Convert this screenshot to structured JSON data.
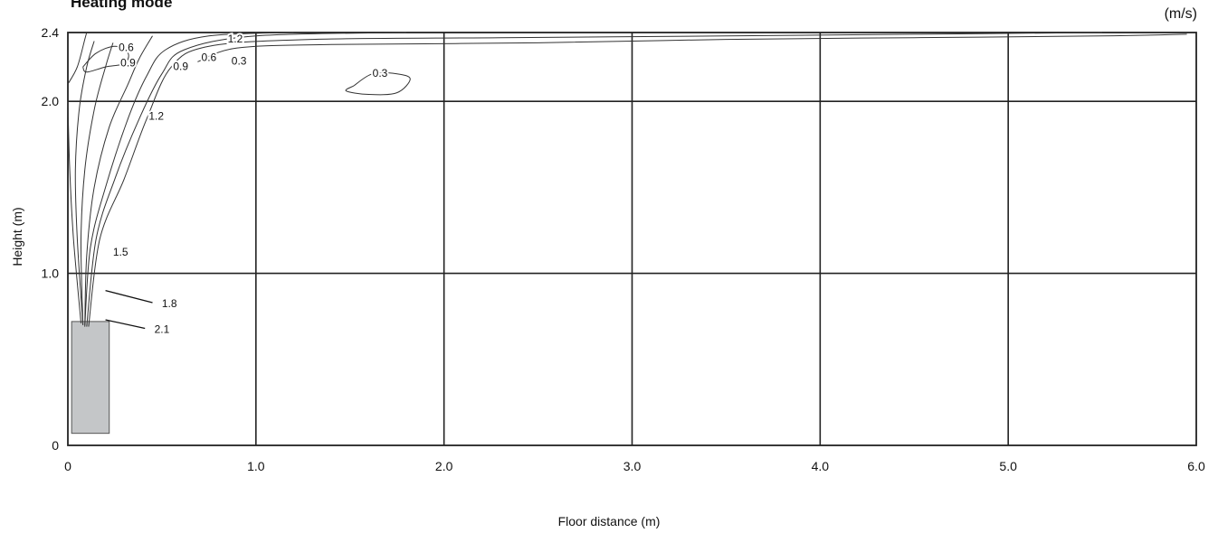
{
  "chart_data": {
    "type": "contour",
    "title": "Heating mode",
    "unit_label": "(m/s)",
    "xlabel": "Floor distance (m)",
    "ylabel": "Height (m)",
    "xlim": [
      0,
      6.0
    ],
    "ylim": [
      0,
      2.4
    ],
    "x_ticks": [
      {
        "value": 0,
        "label": "0"
      },
      {
        "value": 1.0,
        "label": "1.0"
      },
      {
        "value": 2.0,
        "label": "2.0"
      },
      {
        "value": 3.0,
        "label": "3.0"
      },
      {
        "value": 4.0,
        "label": "4.0"
      },
      {
        "value": 5.0,
        "label": "5.0"
      },
      {
        "value": 6.0,
        "label": "6.0"
      }
    ],
    "y_ticks": [
      {
        "value": 0,
        "label": "0"
      },
      {
        "value": 1.0,
        "label": "1.0"
      },
      {
        "value": 2.0,
        "label": "2.0"
      },
      {
        "value": 2.4,
        "label": "2.4"
      }
    ],
    "grid": true,
    "unit_block": {
      "x0": 0.02,
      "x1": 0.22,
      "y0": 0.07,
      "y1": 0.72
    },
    "contours": [
      {
        "level": "0.3",
        "points": [
          [
            0.69,
            2.23
          ],
          [
            0.9,
            2.31
          ],
          [
            1.4,
            2.33
          ],
          [
            2.5,
            2.34
          ],
          [
            3.5,
            2.36
          ],
          [
            4.5,
            2.37
          ],
          [
            5.5,
            2.38
          ],
          [
            5.95,
            2.39
          ]
        ]
      },
      {
        "level": "0.3",
        "closed": true,
        "points": [
          [
            1.52,
            2.09
          ],
          [
            1.62,
            2.16
          ],
          [
            1.75,
            2.16
          ],
          [
            1.82,
            2.13
          ],
          [
            1.75,
            2.05
          ],
          [
            1.6,
            2.04
          ],
          [
            1.48,
            2.06
          ]
        ]
      },
      {
        "level": "0.6",
        "points": [
          [
            0.11,
            0.69
          ],
          [
            0.17,
            1.2
          ],
          [
            0.3,
            1.55
          ],
          [
            0.42,
            1.9
          ],
          [
            0.55,
            2.2
          ],
          [
            0.75,
            2.32
          ],
          [
            1.3,
            2.36
          ],
          [
            2.3,
            2.37
          ],
          [
            3.5,
            2.38
          ],
          [
            4.5,
            2.39
          ],
          [
            5.5,
            2.4
          ]
        ]
      },
      {
        "level": "0.9",
        "points": [
          [
            0.1,
            0.69
          ],
          [
            0.15,
            1.2
          ],
          [
            0.25,
            1.55
          ],
          [
            0.38,
            1.9
          ],
          [
            0.5,
            2.16
          ],
          [
            0.62,
            2.3
          ],
          [
            1.0,
            2.38
          ],
          [
            1.8,
            2.4
          ]
        ]
      },
      {
        "level": "1.2",
        "points": [
          [
            0.09,
            0.69
          ],
          [
            0.12,
            1.15
          ],
          [
            0.2,
            1.5
          ],
          [
            0.32,
            1.9
          ],
          [
            0.42,
            2.15
          ],
          [
            0.52,
            2.3
          ],
          [
            0.75,
            2.38
          ],
          [
            1.2,
            2.4
          ]
        ]
      },
      {
        "level": "1.5",
        "points": [
          [
            0.09,
            0.7
          ],
          [
            0.1,
            1.1
          ],
          [
            0.14,
            1.5
          ],
          [
            0.22,
            1.85
          ],
          [
            0.32,
            2.1
          ],
          [
            0.38,
            2.25
          ],
          [
            0.45,
            2.38
          ]
        ]
      },
      {
        "level": "1.8",
        "points": [
          [
            0.08,
            0.7
          ],
          [
            0.07,
            1.2
          ],
          [
            0.09,
            1.6
          ],
          [
            0.14,
            1.95
          ],
          [
            0.2,
            2.2
          ],
          [
            0.24,
            2.34
          ]
        ]
      },
      {
        "level": "2.1",
        "points": [
          [
            0.08,
            0.7
          ],
          [
            0.05,
            1.2
          ],
          [
            0.04,
            1.6
          ],
          [
            0.06,
            1.95
          ],
          [
            0.1,
            2.2
          ],
          [
            0.14,
            2.35
          ]
        ]
      },
      {
        "level": "",
        "points": [
          [
            0.07,
            0.71
          ],
          [
            0.03,
            1.2
          ],
          [
            0.01,
            1.6
          ],
          [
            0.0,
            2.0
          ]
        ]
      },
      {
        "level": "0.6",
        "closed": true,
        "points": [
          [
            0.08,
            2.2
          ],
          [
            0.15,
            2.28
          ],
          [
            0.25,
            2.32
          ],
          [
            0.32,
            2.28
          ],
          [
            0.3,
            2.22
          ],
          [
            0.2,
            2.2
          ],
          [
            0.1,
            2.17
          ]
        ]
      },
      {
        "level": "1.2",
        "points": [
          [
            0.0,
            2.1
          ],
          [
            0.05,
            2.2
          ],
          [
            0.09,
            2.36
          ],
          [
            0.1,
            2.4
          ]
        ]
      }
    ],
    "contour_labels": [
      {
        "text": "0.6",
        "x": 0.31,
        "y": 2.31
      },
      {
        "text": "0.9",
        "x": 0.32,
        "y": 2.22
      },
      {
        "text": "1.2",
        "x": 0.89,
        "y": 2.36
      },
      {
        "text": "0.9",
        "x": 0.6,
        "y": 2.2
      },
      {
        "text": "0.6",
        "x": 0.75,
        "y": 2.25
      },
      {
        "text": "0.3",
        "x": 0.91,
        "y": 2.23
      },
      {
        "text": "0.3",
        "x": 1.66,
        "y": 2.16
      },
      {
        "text": "1.2",
        "x": 0.47,
        "y": 1.91
      },
      {
        "text": "1.5",
        "x": 0.28,
        "y": 1.12
      },
      {
        "text": "1.8",
        "x": 0.54,
        "y": 0.82
      },
      {
        "text": "2.1",
        "x": 0.5,
        "y": 0.67
      }
    ],
    "leaders": [
      {
        "from": [
          0.2,
          0.9
        ],
        "to": [
          0.45,
          0.83
        ]
      },
      {
        "from": [
          0.2,
          0.73
        ],
        "to": [
          0.41,
          0.68
        ]
      }
    ]
  }
}
